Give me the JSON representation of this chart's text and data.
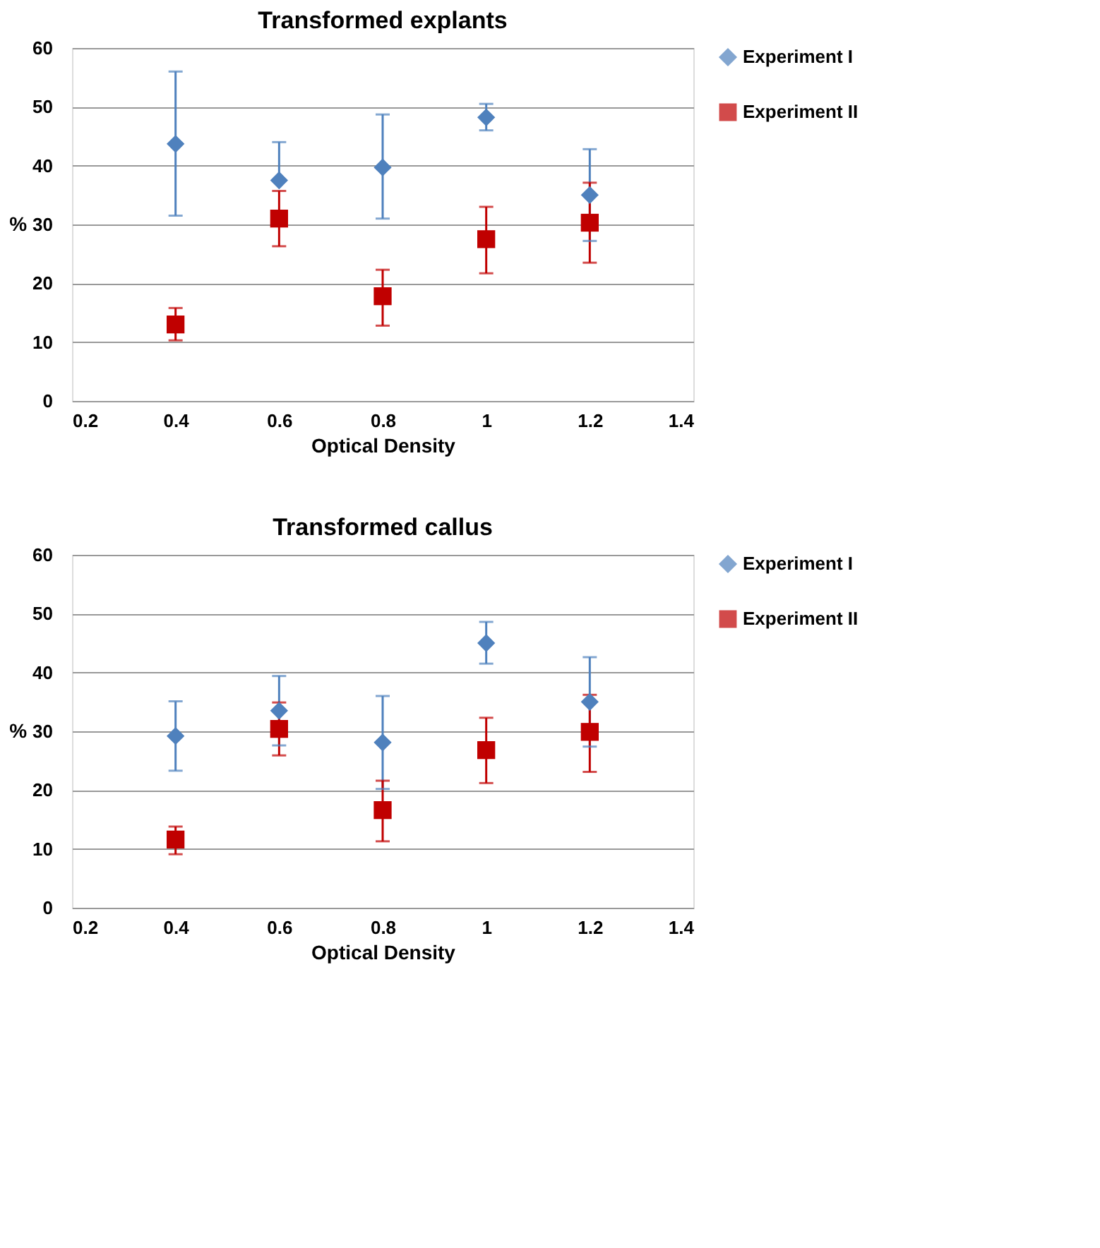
{
  "chart_data": [
    {
      "type": "scatter",
      "title": "Transformed explants",
      "xlabel": "Optical Density",
      "ylabel": "%",
      "x": [
        0.4,
        0.6,
        0.8,
        1,
        1.2
      ],
      "xlim": [
        0.2,
        1.4
      ],
      "xticks": [
        0.2,
        0.4,
        0.6,
        0.8,
        1,
        1.2,
        1.4
      ],
      "ylim": [
        0,
        60
      ],
      "yticks": [
        0,
        10,
        20,
        30,
        40,
        50,
        60
      ],
      "grid": "y",
      "legend": "right",
      "series": [
        {
          "name": "Experiment I",
          "color": "#4f81bd",
          "marker": "diamond",
          "values": [
            43.7,
            37.5,
            39.7,
            48.2,
            35
          ],
          "errors": [
            [
              31.5,
              56
            ],
            [
              37.5,
              44
            ],
            [
              31,
              48.7
            ],
            [
              46,
              50.5
            ],
            [
              27.2,
              42.8
            ]
          ]
        },
        {
          "name": "Experiment II",
          "color": "#c00000",
          "marker": "square",
          "values": [
            13,
            31,
            17.8,
            27.5,
            30.3
          ],
          "errors": [
            [
              10.3,
              15.8
            ],
            [
              26.3,
              35.7
            ],
            [
              12.8,
              22.3
            ],
            [
              21.7,
              33
            ],
            [
              23.5,
              37.1
            ]
          ]
        }
      ]
    },
    {
      "type": "scatter",
      "title": "Transformed callus",
      "xlabel": "Optical Density",
      "ylabel": "%",
      "x": [
        0.4,
        0.6,
        0.8,
        1,
        1.2
      ],
      "xlim": [
        0.2,
        1.4
      ],
      "xticks": [
        0.2,
        0.4,
        0.6,
        0.8,
        1,
        1.2,
        1.4
      ],
      "ylim": [
        0,
        60
      ],
      "yticks": [
        0,
        10,
        20,
        30,
        40,
        50,
        60
      ],
      "grid": "y",
      "legend": "right",
      "series": [
        {
          "name": "Experiment I",
          "color": "#4f81bd",
          "marker": "diamond",
          "values": [
            29.2,
            33.5,
            28.1,
            45,
            35
          ],
          "errors": [
            [
              23.3,
              35.1
            ],
            [
              27.6,
              39.4
            ],
            [
              20.2,
              36
            ],
            [
              41.5,
              48.6
            ],
            [
              27.4,
              42.6
            ]
          ]
        },
        {
          "name": "Experiment II",
          "color": "#c00000",
          "marker": "square",
          "values": [
            11.6,
            30.4,
            16.6,
            26.8,
            29.9
          ],
          "errors": [
            [
              9.1,
              13.8
            ],
            [
              25.9,
              34.9
            ],
            [
              11.3,
              21.6
            ],
            [
              21.2,
              32.3
            ],
            [
              23.1,
              36.2
            ]
          ]
        }
      ]
    }
  ]
}
